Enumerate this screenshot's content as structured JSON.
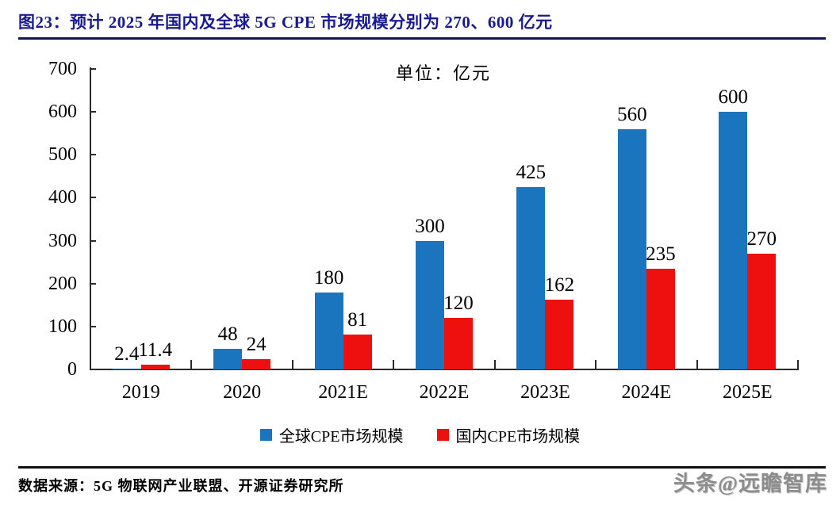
{
  "figure": {
    "title": "图23：预计 2025 年国内及全球 5G CPE 市场规模分别为 270、600 亿元",
    "unit_label": "单位：亿元"
  },
  "chart_data": {
    "type": "bar",
    "title": "预计2025年国内及全球5G CPE市场规模分别为270、600亿元",
    "unit": "亿元",
    "categories": [
      "2019",
      "2020",
      "2021E",
      "2022E",
      "2023E",
      "2024E",
      "2025E"
    ],
    "series": [
      {
        "name": "全球CPE市场规模",
        "color": "#1b74be",
        "values": [
          2.4,
          48,
          180,
          300,
          425,
          560,
          600
        ]
      },
      {
        "name": "国内CPE市场规模",
        "color": "#ee0f0f",
        "values": [
          11.4,
          24,
          81,
          120,
          162,
          235,
          270
        ]
      }
    ],
    "ylim": [
      0,
      700
    ],
    "ytick_step": 100,
    "grid": false,
    "legend_position": "bottom",
    "value_labels": true
  },
  "footer": {
    "source": "数据来源：5G 物联网产业联盟、开源证券研究所",
    "watermark": "头条@远瞻智库"
  }
}
